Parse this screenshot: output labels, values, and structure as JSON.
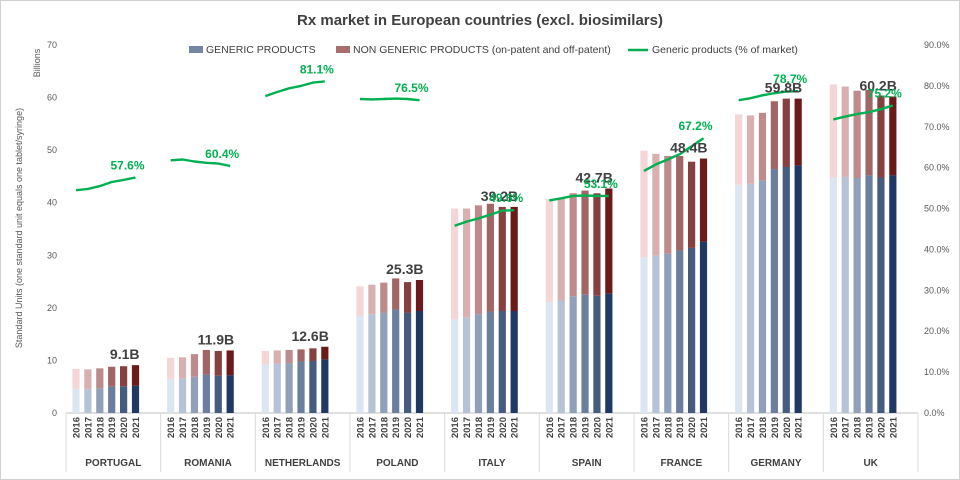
{
  "chart_data": {
    "type": "bar",
    "title": "Rx market in European countries (excl. biosimilars)",
    "ylabel": "Standard Units (one standard unit equals one tablet/syringe)",
    "yunit": "Billions",
    "ylim": [
      0,
      70
    ],
    "yticks": [
      "0",
      "10",
      "20",
      "30",
      "40",
      "50",
      "60",
      "70"
    ],
    "y2lim": [
      0,
      90
    ],
    "y2ticks": [
      "0.0%",
      "10.0%",
      "20.0%",
      "30.0%",
      "40.0%",
      "50.0%",
      "60.0%",
      "70.0%",
      "80.0%",
      "90.0%"
    ],
    "years": [
      "2016",
      "2017",
      "2018",
      "2019",
      "2020",
      "2021"
    ],
    "legend": {
      "generic": "GENERIC PRODUCTS",
      "non_generic": "NON GENERIC PRODUCTS (on-patent and off-patent)",
      "line": "Generic products (% of market)"
    },
    "colors": {
      "generic_light": "#dce6f2",
      "generic_dark": "#1f3864",
      "non_generic_light": "#f4d6d6",
      "non_generic_dark": "#6b1a1a",
      "line": "#00b050"
    },
    "countries": [
      {
        "name": "PORTUGAL",
        "generic": [
          4.6,
          4.6,
          4.7,
          5.0,
          5.1,
          5.2
        ],
        "total": [
          8.4,
          8.3,
          8.5,
          8.8,
          8.9,
          9.1
        ],
        "pct": [
          54.5,
          54.8,
          55.5,
          56.5,
          57.0,
          57.6
        ],
        "total_label": "9.1B",
        "pct_label": "57.6%"
      },
      {
        "name": "ROMANIA",
        "generic": [
          6.5,
          6.6,
          6.9,
          7.3,
          7.1,
          7.2
        ],
        "total": [
          10.5,
          10.6,
          11.2,
          12.0,
          11.8,
          11.9
        ],
        "pct": [
          61.8,
          62.0,
          61.5,
          61.2,
          61.0,
          60.4
        ],
        "total_label": "11.9B",
        "pct_label": "60.4%"
      },
      {
        "name": "NETHERLANDS",
        "generic": [
          9.2,
          9.4,
          9.5,
          9.8,
          9.9,
          10.2
        ],
        "total": [
          11.8,
          11.9,
          12.0,
          12.1,
          12.3,
          12.6
        ],
        "pct": [
          77.5,
          78.5,
          79.4,
          80.0,
          80.8,
          81.1
        ],
        "total_label": "12.6B",
        "pct_label": "81.1%"
      },
      {
        "name": "POLAND",
        "generic": [
          18.5,
          18.8,
          19.1,
          19.7,
          19.1,
          19.4
        ],
        "total": [
          24.1,
          24.4,
          24.8,
          25.6,
          24.9,
          25.3
        ],
        "pct": [
          76.8,
          76.7,
          76.8,
          76.9,
          76.8,
          76.5
        ],
        "total_label": "25.3B",
        "pct_label": "76.5%"
      },
      {
        "name": "ITALY",
        "generic": [
          17.8,
          18.2,
          18.8,
          19.3,
          19.4,
          19.4
        ],
        "total": [
          38.9,
          38.9,
          39.5,
          39.8,
          39.2,
          39.2
        ],
        "pct": [
          45.8,
          46.8,
          47.6,
          48.5,
          49.5,
          49.6
        ],
        "total_label": "39.2B",
        "pct_label": "49.6%"
      },
      {
        "name": "SPAIN",
        "generic": [
          21.1,
          21.4,
          22.2,
          22.5,
          22.3,
          22.7
        ],
        "total": [
          40.7,
          40.8,
          41.8,
          42.3,
          41.8,
          42.7
        ],
        "pct": [
          52.0,
          52.5,
          53.1,
          53.2,
          53.1,
          53.1
        ],
        "total_label": "42.7B",
        "pct_label": "53.1%"
      },
      {
        "name": "FRANCE",
        "generic": [
          29.6,
          29.9,
          30.3,
          30.9,
          31.4,
          32.6
        ],
        "total": [
          49.9,
          49.3,
          48.9,
          48.9,
          47.8,
          48.4
        ],
        "pct": [
          59.2,
          60.8,
          62.0,
          63.3,
          65.2,
          67.2
        ],
        "total_label": "48.4B",
        "pct_label": "67.2%"
      },
      {
        "name": "GERMANY",
        "generic": [
          43.4,
          43.6,
          44.2,
          46.4,
          46.8,
          47.1
        ],
        "total": [
          56.8,
          56.6,
          57.1,
          59.3,
          59.8,
          59.8
        ],
        "pct": [
          76.5,
          77.0,
          77.7,
          78.2,
          78.6,
          78.7
        ],
        "total_label": "59.8B",
        "pct_label": "78.7%"
      },
      {
        "name": "UK",
        "generic": [
          44.8,
          44.9,
          44.7,
          45.2,
          44.8,
          45.2
        ],
        "total": [
          62.5,
          62.1,
          61.3,
          61.5,
          60.4,
          60.2
        ],
        "pct": [
          71.8,
          72.5,
          73.1,
          73.6,
          74.3,
          75.2
        ],
        "total_label": "60.2B",
        "pct_label": "75.2%"
      }
    ]
  }
}
